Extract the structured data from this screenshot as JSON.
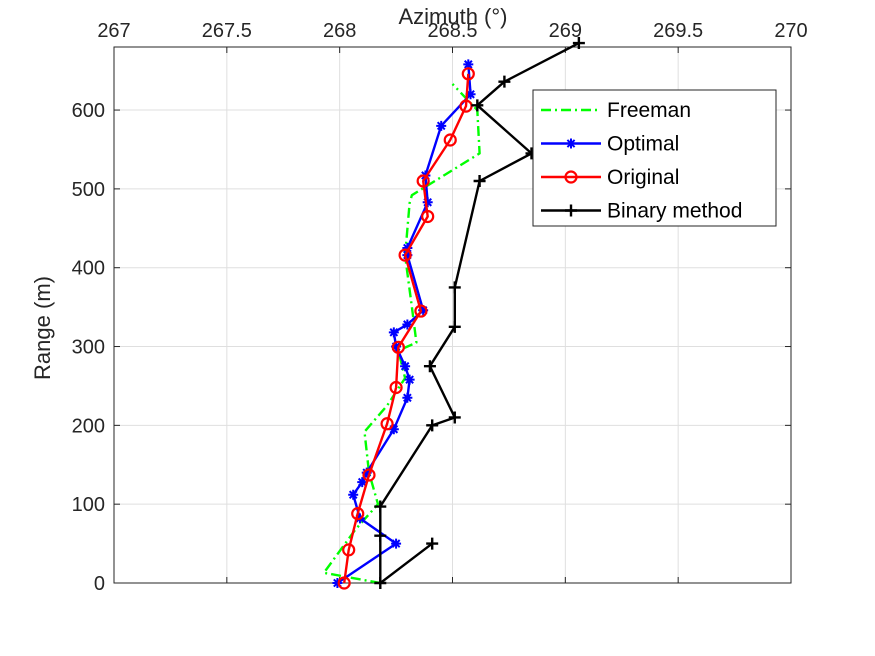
{
  "chart_data": {
    "type": "line",
    "xlabel": "Azimuth (°)",
    "ylabel": "Range (m)",
    "xlim": [
      267,
      270
    ],
    "ylim": [
      0,
      680
    ],
    "xticks": [
      267,
      267.5,
      268,
      268.5,
      269,
      269.5,
      270
    ],
    "xtick_labels": [
      "267",
      "267.5",
      "268",
      "268.5",
      "269",
      "269.5",
      "270"
    ],
    "yticks": [
      0,
      100,
      200,
      300,
      400,
      500,
      600
    ],
    "ytick_labels": [
      "0",
      "100",
      "200",
      "300",
      "400",
      "500",
      "600"
    ],
    "x_axis_position": "top",
    "grid": true,
    "legend_position": "top-right",
    "series": [
      {
        "name": "Freeman",
        "color": "#00ff00",
        "dash": "dashdot",
        "marker": "none",
        "points": [
          [
            268.18,
            0
          ],
          [
            267.93,
            13
          ],
          [
            268.07,
            68
          ],
          [
            268.17,
            100
          ],
          [
            268.13,
            140
          ],
          [
            268.11,
            192
          ],
          [
            268.21,
            225
          ],
          [
            268.29,
            260
          ],
          [
            268.26,
            295
          ],
          [
            268.34,
            305
          ],
          [
            268.32,
            350
          ],
          [
            268.29,
            415
          ],
          [
            268.31,
            482
          ],
          [
            268.32,
            492
          ],
          [
            268.62,
            545
          ],
          [
            268.61,
            600
          ],
          [
            268.5,
            633
          ]
        ]
      },
      {
        "name": "Optimal",
        "color": "#0000ff",
        "dash": "solid",
        "marker": "asterisk",
        "points": [
          [
            267.99,
            0
          ],
          [
            268.25,
            50
          ],
          [
            268.09,
            82
          ],
          [
            268.06,
            112
          ],
          [
            268.1,
            128
          ],
          [
            268.12,
            140
          ],
          [
            268.24,
            195
          ],
          [
            268.3,
            235
          ],
          [
            268.31,
            258
          ],
          [
            268.29,
            275
          ],
          [
            268.25,
            300
          ],
          [
            268.24,
            318
          ],
          [
            268.3,
            328
          ],
          [
            268.37,
            346
          ],
          [
            268.3,
            416
          ],
          [
            268.3,
            425
          ],
          [
            268.39,
            483
          ],
          [
            268.38,
            517
          ],
          [
            268.45,
            580
          ],
          [
            268.58,
            620
          ],
          [
            268.57,
            658
          ]
        ]
      },
      {
        "name": "Original",
        "color": "#ff0000",
        "dash": "solid",
        "marker": "circle",
        "points": [
          [
            268.02,
            0
          ],
          [
            268.04,
            42
          ],
          [
            268.08,
            88
          ],
          [
            268.13,
            137
          ],
          [
            268.21,
            202
          ],
          [
            268.25,
            248
          ],
          [
            268.26,
            299
          ],
          [
            268.36,
            345
          ],
          [
            268.29,
            416
          ],
          [
            268.39,
            465
          ],
          [
            268.37,
            510
          ],
          [
            268.49,
            562
          ],
          [
            268.56,
            605
          ],
          [
            268.57,
            646
          ]
        ]
      },
      {
        "name": "Binary method",
        "color": "#000000",
        "dash": "solid",
        "marker": "plus",
        "points": [
          [
            268.41,
            50
          ],
          [
            268.18,
            0
          ],
          [
            268.18,
            60
          ],
          [
            268.18,
            97
          ],
          [
            268.41,
            200
          ],
          [
            268.51,
            210
          ],
          [
            268.4,
            275
          ],
          [
            268.51,
            325
          ],
          [
            268.51,
            375
          ],
          [
            268.62,
            510
          ],
          [
            268.85,
            545
          ],
          [
            268.61,
            606
          ],
          [
            268.73,
            636
          ],
          [
            269.06,
            685
          ]
        ]
      }
    ]
  }
}
